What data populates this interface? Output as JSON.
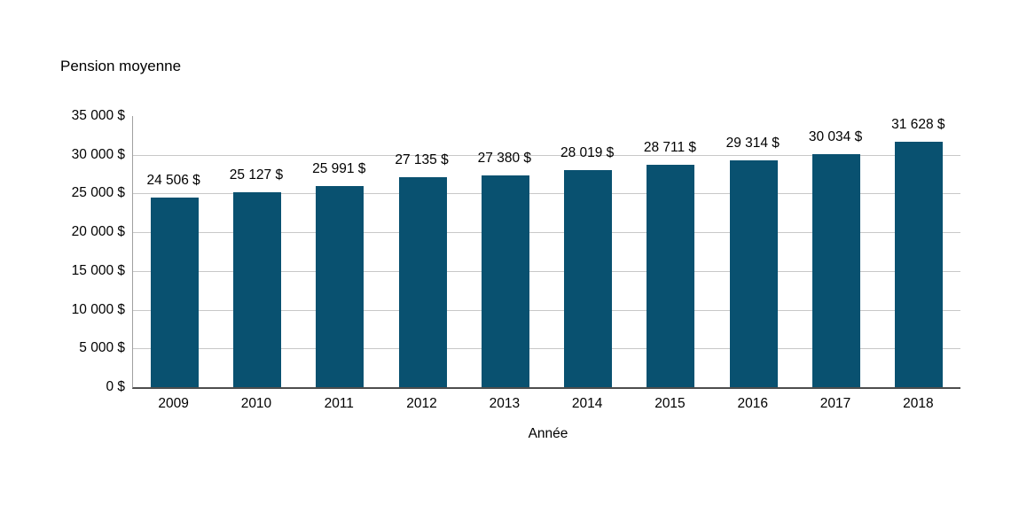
{
  "chart_data": {
    "type": "bar",
    "title": "Pension moyenne",
    "xlabel": "Année",
    "ylabel": "Pension moyenne",
    "categories": [
      "2009",
      "2010",
      "2011",
      "2012",
      "2013",
      "2014",
      "2015",
      "2016",
      "2017",
      "2018"
    ],
    "values": [
      24506,
      25127,
      25991,
      27135,
      27380,
      28019,
      28711,
      29314,
      30034,
      31628
    ],
    "data_labels": [
      "24 506 $",
      "25 127 $",
      "25 991 $",
      "27 135 $",
      "27 380 $",
      "28 019 $",
      "28 711 $",
      "29 314 $",
      "30 034 $",
      "31 628 $"
    ],
    "y_ticks": [
      {
        "label": "35 000 $",
        "value": 35000
      },
      {
        "label": "30 000 $",
        "value": 30000
      },
      {
        "label": "25 000 $",
        "value": 25000
      },
      {
        "label": "20 000 $",
        "value": 20000
      },
      {
        "label": "15 000 $",
        "value": 15000
      },
      {
        "label": "10 000 $",
        "value": 10000
      },
      {
        "label": "5 000 $",
        "value": 5000
      },
      {
        "label": "0 $",
        "value": 0
      }
    ],
    "gridlines_at": [
      5000,
      10000,
      15000,
      20000,
      25000,
      30000
    ],
    "ylim": [
      0,
      35000
    ],
    "grid": true,
    "legend": "none",
    "colors": {
      "bar": "#095170",
      "gridline": "#c8c8c8",
      "y_axis_line": "#a0a0a0",
      "x_axis_line": "#4d4d4d",
      "text": "#000000",
      "background": "#ffffff"
    }
  }
}
